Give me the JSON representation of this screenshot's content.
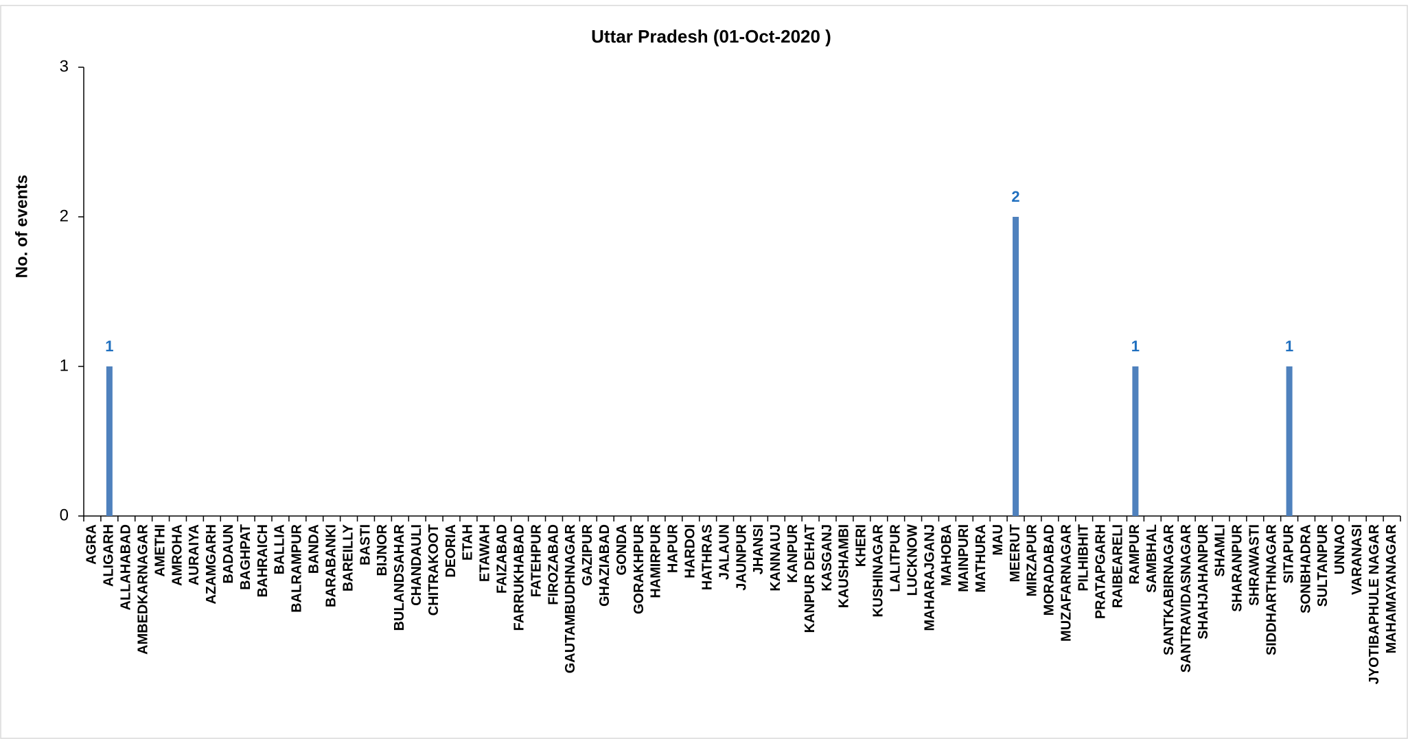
{
  "chart_data": {
    "type": "bar",
    "title": "Uttar Pradesh  (01-Oct-2020 )",
    "y_label": "No. of events",
    "categories": [
      "AGRA",
      "ALIGARH",
      "ALLAHABAD",
      "AMBEDKARNAGAR",
      "AMETHI",
      "AMROHA",
      "AURAIYA",
      "AZAMGARH",
      "BADAUN",
      "BAGHPAT",
      "BAHRAICH",
      "BALLIA",
      "BALRAMPUR",
      "BANDA",
      "BARABANKI",
      "BAREILLY",
      "BASTI",
      "BIJNOR",
      "BULANDSAHAR",
      "CHANDAULI",
      "CHITRAKOOT",
      "DEORIA",
      "ETAH",
      "ETAWAH",
      "FAIZABAD",
      "FARRUKHABAD",
      "FATEHPUR",
      "FIROZABAD",
      "GAUTAMBUDHNAGAR",
      "GAZIPUR",
      "GHAZIABAD",
      "GONDA",
      "GORAKHPUR",
      "HAMIRPUR",
      "HAPUR",
      "HARDOI",
      "HATHRAS",
      "JALAUN",
      "JAUNPUR",
      "JHANSI",
      "KANNAUJ",
      "KANPUR",
      "KANPUR DEHAT",
      "KASGANJ",
      "KAUSHAMBI",
      "KHERI",
      "KUSHINAGAR",
      "LALITPUR",
      "LUCKNOW",
      "MAHARAJGANJ",
      "MAHOBA",
      "MAINPURI",
      "MATHURA",
      "MAU",
      "MEERUT",
      "MIRZAPUR",
      "MORADABAD",
      "MUZAFARNAGAR",
      "PILHIBHIT",
      "PRATAPGARH",
      "RAIBEARELI",
      "RAMPUR",
      "SAMBHAL",
      "SANTKABIRNAGAR",
      "SANTRAVIDASNAGAR",
      "SHAHJAHANPUR",
      "SHAMLI",
      "SHARANPUR",
      "SHRAWASTI",
      "SIDDHARTHNAGAR",
      "SITAPUR",
      "SONBHADRA",
      "SULTANPUR",
      "UNNAO",
      "VARANASI",
      "JYOTIBAPHULE NAGAR",
      "MAHAMAYANAGAR"
    ],
    "values": [
      0,
      1,
      0,
      0,
      0,
      0,
      0,
      0,
      0,
      0,
      0,
      0,
      0,
      0,
      0,
      0,
      0,
      0,
      0,
      0,
      0,
      0,
      0,
      0,
      0,
      0,
      0,
      0,
      0,
      0,
      0,
      0,
      0,
      0,
      0,
      0,
      0,
      0,
      0,
      0,
      0,
      0,
      0,
      0,
      0,
      0,
      0,
      0,
      0,
      0,
      0,
      0,
      0,
      0,
      2,
      0,
      0,
      0,
      0,
      0,
      0,
      1,
      0,
      0,
      0,
      0,
      0,
      0,
      0,
      0,
      1,
      0,
      0,
      0,
      0,
      0,
      0
    ],
    "color": "#4f81bd",
    "label_color": "#1f6fbf",
    "ylim": [
      0,
      3
    ],
    "yticks": [
      0,
      1,
      2,
      3
    ],
    "grid": false
  }
}
